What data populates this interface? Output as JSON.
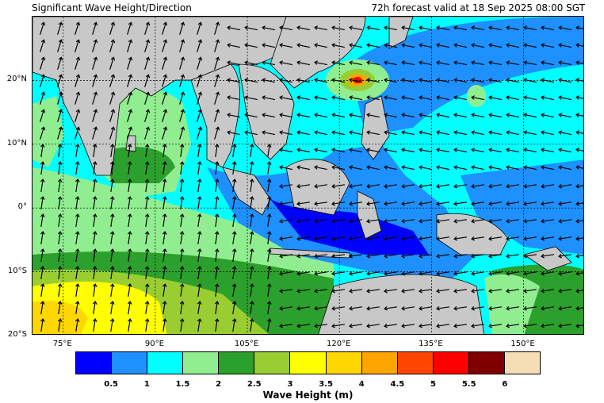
{
  "header": {
    "title": "Significant Wave Height/Direction",
    "valid_time": "72h forecast valid at 18 Sep 2025 08:00 SGT"
  },
  "map": {
    "lat_labels": [
      "20°N",
      "10°N",
      "0°",
      "10°S",
      "20°S"
    ],
    "lat_values": [
      20,
      10,
      0,
      -10,
      -20
    ],
    "lon_labels": [
      "75°E",
      "90°E",
      "105°E",
      "120°E",
      "135°E",
      "150°E"
    ],
    "lon_values": [
      75,
      90,
      105,
      120,
      135,
      150
    ],
    "lon_range": [
      70,
      160
    ],
    "lat_range": [
      -20,
      30
    ],
    "land_color": "#c8c8c8",
    "arrow_color": "#000000",
    "typhoon_center": {
      "lon": 122.5,
      "lat": 20.5,
      "peak_height_m": 6
    }
  },
  "colorbar": {
    "title": "Wave Height (m)",
    "tick_labels": [
      "0.5",
      "1",
      "1.5",
      "2",
      "2.5",
      "3",
      "3.5",
      "4",
      "4.5",
      "5",
      "5.5",
      "6"
    ],
    "colors": [
      "#0000ff",
      "#1e90ff",
      "#00ffff",
      "#90ee90",
      "#2ca02c",
      "#9acd32",
      "#ffff00",
      "#ffd700",
      "#ffa500",
      "#ff4500",
      "#ff0000",
      "#800000",
      "#f5deb3"
    ]
  }
}
